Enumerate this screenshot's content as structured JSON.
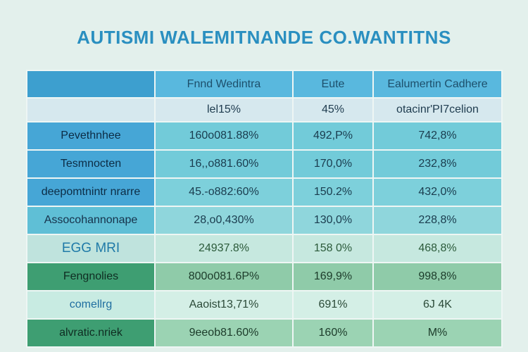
{
  "chart_data": {
    "type": "table",
    "title": "AUTISMI WALEMITNANDE CO.WANTITNS",
    "columns": [
      "",
      "Fnnd Wedintra",
      "Eute",
      "Ealumertin Cadhere"
    ],
    "subheader": [
      "",
      "lel15%",
      "45%",
      "otacinr'PI7celion"
    ],
    "rows": [
      {
        "label": "Pevethnhee",
        "values": [
          "160o081.88%",
          "492,P%",
          "742,8%"
        ]
      },
      {
        "label": "Tesmnocten",
        "values": [
          "16,,o881.60%",
          "170,0%",
          "232,8%"
        ]
      },
      {
        "label": "deepomtnintr nrarre",
        "values": [
          "45.-o882:60%",
          "150.2%",
          "432,0%"
        ]
      },
      {
        "label": "Assocohannonape",
        "values": [
          "28,o0,430%",
          "130,0%",
          "228,8%"
        ]
      },
      {
        "label": "EGG MRI",
        "values": [
          "24937.8%",
          "158 0%",
          "468,8%"
        ]
      },
      {
        "label": "Fengnolies",
        "values": [
          "800o081.6P%",
          "169,9%",
          "998,8%"
        ]
      },
      {
        "label": "comellrg",
        "values": [
          "Aaoist13,71%",
          "691%",
          "6J 4K"
        ]
      },
      {
        "label": "alvratic.nriek",
        "values": [
          "9eeob81.60%",
          "160%",
          "M%"
        ]
      }
    ]
  }
}
